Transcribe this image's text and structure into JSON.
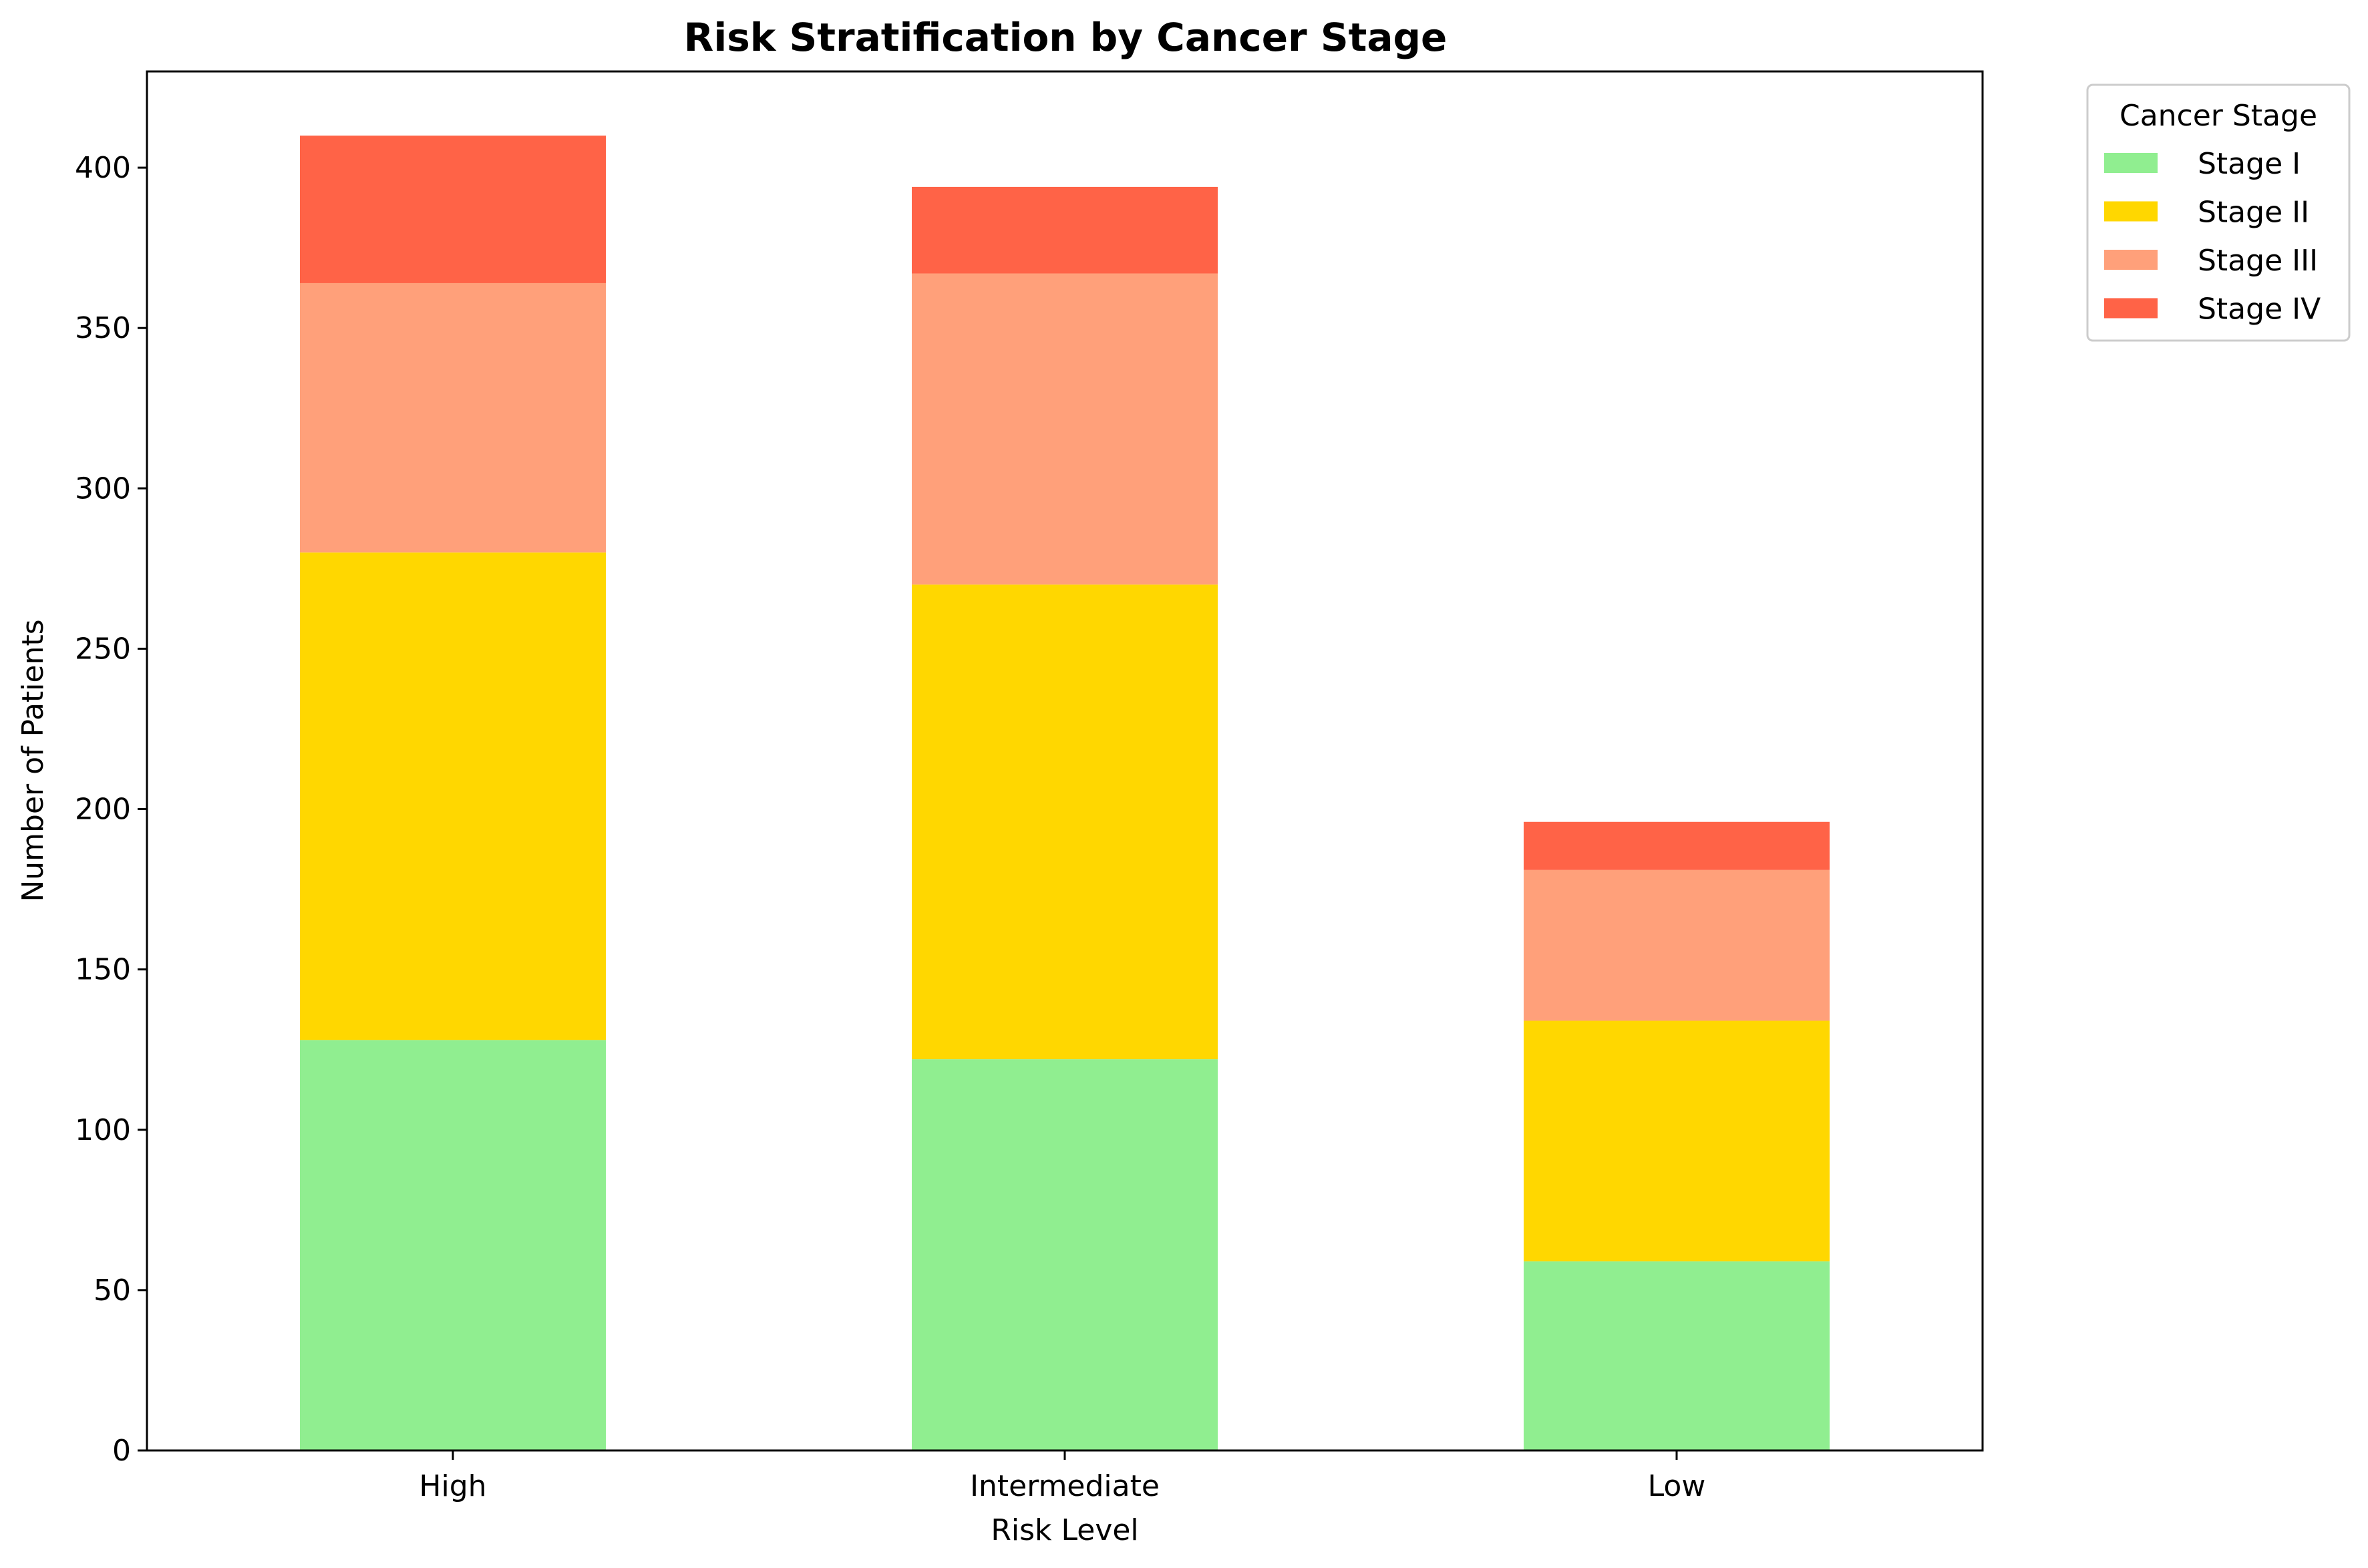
{
  "chart_data": {
    "type": "bar",
    "stacked": true,
    "title": "Risk Stratification by Cancer Stage",
    "xlabel": "Risk Level",
    "ylabel": "Number of Patients",
    "categories": [
      "High",
      "Intermediate",
      "Low"
    ],
    "series": [
      {
        "name": "Stage I",
        "color": "#90EE90",
        "values": [
          128,
          122,
          59
        ]
      },
      {
        "name": "Stage II",
        "color": "#FFD700",
        "values": [
          152,
          148,
          75
        ]
      },
      {
        "name": "Stage III",
        "color": "#FFA07A",
        "values": [
          84,
          97,
          47
        ]
      },
      {
        "name": "Stage IV",
        "color": "#FF6347",
        "values": [
          46,
          27,
          15
        ]
      }
    ],
    "ylim": [
      0,
      430
    ],
    "yticks": [
      0,
      50,
      100,
      150,
      200,
      250,
      300,
      350,
      400
    ],
    "grid": false,
    "legend": {
      "title": "Cancer Stage",
      "placement": "outside-top-right"
    }
  }
}
